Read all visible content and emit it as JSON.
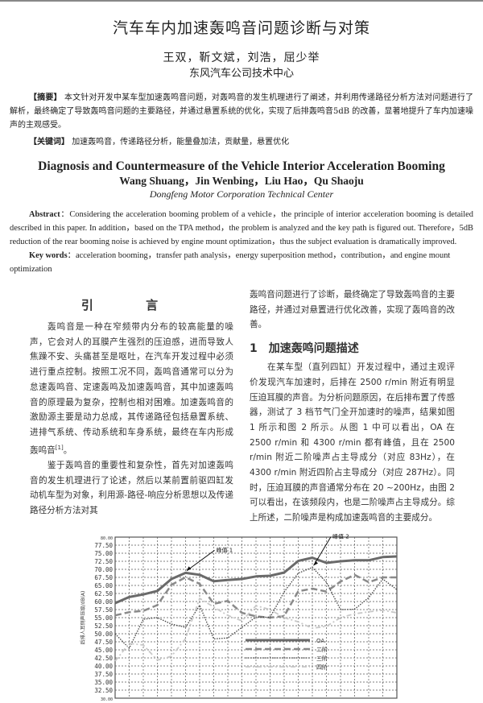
{
  "header": {
    "title": "汽车车内加速轰鸣音问题诊断与对策",
    "authors": "王双，靳文斌，刘浩，屈少举",
    "affiliation": "东风汽车公司技术中心"
  },
  "cn_abstract": {
    "label": "【摘要】",
    "text": "本文针对开发中某车型加速轰鸣音问题，对轰鸣音的发生机理进行了阐述，并利用传递路径分析方法对问题进行了解析，最终确定了导致轰鸣音问题的主要路径，并通过悬置系统的优化，实现了后排轰鸣音5dB 的改善，显著地提升了车内加速噪声的主观感受。",
    "keywords_label": "【关键词】",
    "keywords": "加速轰鸣音，传递路径分析，能量叠加法，贡献量，悬置优化"
  },
  "en": {
    "title": "Diagnosis and Countermeasure of the Vehicle Interior Acceleration Booming",
    "authors": "Wang Shuang，Jin Wenbing，Liu Hao，Qu Shaoju",
    "affiliation": "Dongfeng Motor Corporation Technical Center",
    "abstract_label": "Abstract",
    "abstract": "：Considering the acceleration booming problem of a vehicle，the principle of interior acceleration booming is detailed described in this paper. In addition，based on the TPA method，the problem is analyzed and the key path is figured out. Therefore，5dB reduction of the rear booming noise is achieved by engine mount optimization，thus the subject evaluation is dramatically improved.",
    "keywords_label": "Key words",
    "keywords": "：acceleration booming，transfer path analysis，energy superposition method，contribution，and engine mount optimization"
  },
  "intro": {
    "heading": "引 言",
    "p1": "轰鸣音是一种在窄频带内分布的较高能量的噪声，它会对人的耳膜产生强烈的压迫感，进而导致人焦躁不安、头痛甚至是呕吐，在汽车开发过程中必须进行重点控制。按照工况不同，轰鸣音通常可以分为怠速轰鸣音、定速轰鸣及加速轰鸣音，其中加速轰鸣音的原理最为复杂，控制也相对困难。加速轰鸣音的激励源主要是动力总成，其传递路径包括悬置系统、进排气系统、传动系统和车身系统，最终在车内形成轰鸣音",
    "p1_ref": "[1]",
    "p1_end": "。",
    "p2": "鉴于轰鸣音的重要性和复杂性，首先对加速轰鸣音的发生机理进行了论述，然后以某前置前驱四缸发动机车型为对象，利用源-路径-响应分析思想以及传递路径分析方法对其",
    "p2_cont": "轰鸣音问题进行了诊断，最终确定了导致轰鸣音的主要路径，并通过对悬置进行优化改善，实现了轰鸣音的改善。"
  },
  "section1": {
    "number": "1",
    "heading": "加速轰鸣问题描述",
    "p1": "在某车型（直列四缸）开发过程中，通过主观评价发现汽车加速时，后排在 2500 r/min 附近有明显压迫耳膜的声音。为分析问题原因，在后排布置了传感器，测试了 3 档节气门全开加速时的噪声，结果如图 1 所示和图 2 所示。从图 1 中可以看出，OA 在 2500 r/min 和 4300 r/min 都有峰值，且在 2500 r/min 附近二阶噪声占主导成分（对应 83Hz），在 4300 r/min 附近四阶占主导成分（对应 287Hz）。同时，压迫耳膜的声音通常分布在 20 ~200Hz，由图 2 可以看出，在该频段内，也是二阶噪声占主导成分。综上所述，二阶噪声是构成加速轰鸣音的主要成分。"
  },
  "chart_data": {
    "type": "line",
    "ylabel": "后排人耳侧声压级/dB(A)",
    "ylim": [
      30,
      80
    ],
    "yticks": [
      "80.00",
      "77.50",
      "75.00",
      "72.50",
      "70.00",
      "67.50",
      "65.00",
      "62.50",
      "60.00",
      "57.50",
      "55.00",
      "52.50",
      "50.00",
      "47.50",
      "45.00",
      "42.50",
      "40.00",
      "37.50",
      "35.00",
      "32.50",
      "30.00"
    ],
    "grid": true,
    "legend_placement": "lower-center",
    "annotations": [
      {
        "text": "峰值 1",
        "series": "OA",
        "index": 5
      },
      {
        "text": "峰值 2",
        "series": "三阶",
        "index": 14
      }
    ],
    "series": [
      {
        "name": "OA",
        "color": "#6a6a6a",
        "style": "solid-thick",
        "values": [
          59.5,
          61.4,
          62.2,
          63.3,
          67,
          68.9,
          68.3,
          66.3,
          66.7,
          67,
          67.8,
          68,
          69,
          72.6,
          73.6,
          72,
          72.5,
          72.8,
          72.8,
          73.8,
          74
        ]
      },
      {
        "name": "二阶",
        "color": "#8a8a8a",
        "style": "dashed-thick",
        "values": [
          55.7,
          56.7,
          57.1,
          58.9,
          65.2,
          67.5,
          65.5,
          59.3,
          60.2,
          56.5,
          55.4,
          55,
          55.5,
          63.2,
          64,
          63.1,
          66.2,
          68.3,
          66,
          67.5,
          67.5
        ]
      },
      {
        "name": "三阶",
        "color": "#444444",
        "style": "dotted",
        "values": [
          50,
          45.5,
          54.5,
          55,
          53,
          52,
          58.8,
          48.4,
          48.7,
          52,
          55.2,
          55.1,
          63,
          68.8,
          70.6,
          66,
          57.5,
          57.6,
          61.2,
          67,
          63.7
        ]
      },
      {
        "name": "四阶",
        "color": "#c8c8c8",
        "style": "dash-dot-light",
        "values": [
          41.5,
          47,
          46.5,
          41.8,
          43,
          48.5,
          61,
          58.3,
          55.7,
          54,
          58.7,
          57.5,
          55,
          53.7,
          51.7,
          52.3,
          55,
          56.2,
          56.8,
          57.3,
          56.5
        ]
      }
    ]
  }
}
